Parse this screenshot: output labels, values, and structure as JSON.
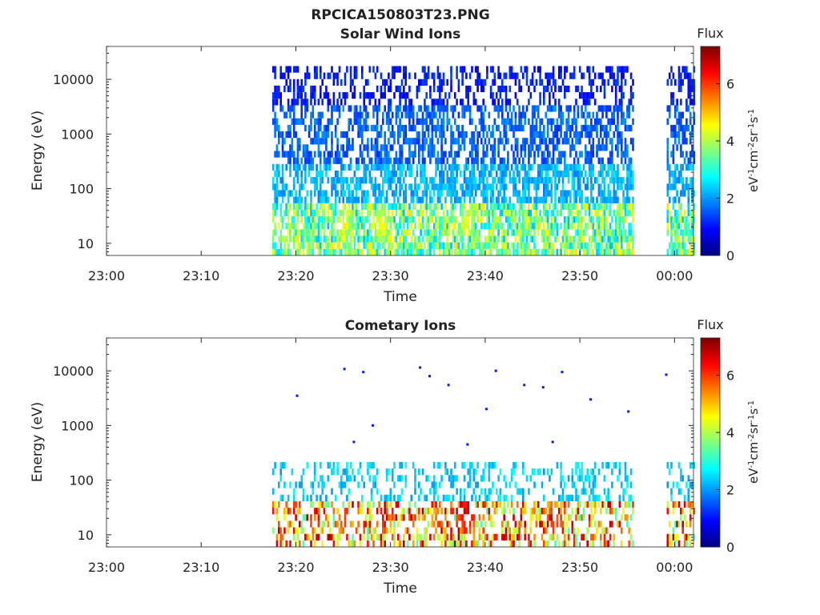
{
  "figure": {
    "suptitle": "RPCICA150803T23.PNG"
  },
  "colors": {
    "colormap": [
      "#00007f",
      "#0000ff",
      "#007fff",
      "#00ffff",
      "#7fff7f",
      "#ffff00",
      "#ff7f00",
      "#ff0000",
      "#7f0000"
    ]
  },
  "chart_data": [
    {
      "type": "heatmap",
      "title": "Solar Wind Ions",
      "xlabel": "Time",
      "ylabel": "Energy (eV)",
      "y_scale": "log",
      "ylim": [
        6,
        40000
      ],
      "yticks": [
        10,
        100,
        1000,
        10000
      ],
      "yticklabels": [
        "10",
        "100",
        "1000",
        "10000"
      ],
      "x_range": [
        "23:00",
        "00:02"
      ],
      "xticks": [
        "23:00",
        "23:10",
        "23:20",
        "23:30",
        "23:40",
        "23:50",
        "00:00"
      ],
      "colorbar": {
        "label": "Flux",
        "unit_label": "eV-1cm-2sr-1s-1",
        "range": [
          0,
          7.3
        ],
        "ticks": [
          "0",
          "2",
          "4",
          "6"
        ]
      },
      "data_intervals": [
        [
          "23:17:30",
          "23:55:40"
        ],
        [
          "23:59:10",
          "00:02:00"
        ]
      ],
      "bands": [
        {
          "energy_range": [
            6,
            50
          ],
          "flux_range": [
            2.2,
            4.8
          ]
        },
        {
          "energy_range": [
            50,
            300
          ],
          "flux_range": [
            1.8,
            2.6
          ]
        },
        {
          "energy_range": [
            300,
            3000
          ],
          "flux_range": [
            1.2,
            2.0
          ]
        },
        {
          "energy_range": [
            3000,
            20000
          ],
          "flux_range": [
            0.8,
            1.4
          ]
        }
      ],
      "hotspots": [
        {
          "time": "23:25",
          "energy": 22,
          "flux": 4.6
        },
        {
          "time": "23:29",
          "energy": 22,
          "flux": 4.8
        },
        {
          "time": "23:38",
          "energy": 25,
          "flux": 4.7
        }
      ]
    },
    {
      "type": "heatmap",
      "title": "Cometary Ions",
      "xlabel": "Time",
      "ylabel": "Energy (eV)",
      "y_scale": "log",
      "ylim": [
        6,
        40000
      ],
      "yticks": [
        10,
        100,
        1000,
        10000
      ],
      "yticklabels": [
        "10",
        "100",
        "1000",
        "10000"
      ],
      "x_range": [
        "23:00",
        "00:02"
      ],
      "xticks": [
        "23:00",
        "23:10",
        "23:20",
        "23:30",
        "23:40",
        "23:50",
        "00:00"
      ],
      "colorbar": {
        "label": "Flux",
        "unit_label": "eV-1cm-2sr-1s-1",
        "range": [
          0,
          7.3
        ],
        "ticks": [
          "0",
          "2",
          "4",
          "6"
        ]
      },
      "data_intervals": [
        [
          "23:17:30",
          "23:55:40"
        ],
        [
          "23:59:10",
          "00:02:00"
        ]
      ],
      "bands": [
        {
          "energy_range": [
            6,
            40
          ],
          "flux_range": [
            3.2,
            7.0
          ]
        },
        {
          "energy_range": [
            40,
            200
          ],
          "flux_range": [
            2.0,
            2.8
          ]
        }
      ],
      "hotspots": [
        {
          "time": "23:19",
          "energy": 15,
          "flux": 5.2
        },
        {
          "time": "23:22",
          "energy": 15,
          "flux": 4.6
        },
        {
          "time": "23:25",
          "energy": 18,
          "flux": 6.3
        },
        {
          "time": "23:29",
          "energy": 22,
          "flux": 6.6
        },
        {
          "time": "23:32",
          "energy": 15,
          "flux": 4.8
        },
        {
          "time": "23:35",
          "energy": 18,
          "flux": 6.2
        },
        {
          "time": "23:38",
          "energy": 22,
          "flux": 7.0
        },
        {
          "time": "23:41",
          "energy": 15,
          "flux": 4.6
        },
        {
          "time": "23:44",
          "energy": 18,
          "flux": 5.6
        },
        {
          "time": "23:47",
          "energy": 20,
          "flux": 6.4
        },
        {
          "time": "23:51",
          "energy": 15,
          "flux": 4.5
        },
        {
          "time": "23:54",
          "energy": 15,
          "flux": 4.2
        },
        {
          "time": "00:01",
          "energy": 15,
          "flux": 4.4
        }
      ],
      "scattered_points": [
        {
          "time": "23:20",
          "energy": 3500
        },
        {
          "time": "23:25",
          "energy": 10800
        },
        {
          "time": "23:27",
          "energy": 9500
        },
        {
          "time": "23:33",
          "energy": 11500
        },
        {
          "time": "23:34",
          "energy": 8000
        },
        {
          "time": "23:36",
          "energy": 5500
        },
        {
          "time": "23:41",
          "energy": 10000
        },
        {
          "time": "23:44",
          "energy": 5500
        },
        {
          "time": "23:46",
          "energy": 5000
        },
        {
          "time": "23:48",
          "energy": 9500
        },
        {
          "time": "23:51",
          "energy": 3000
        },
        {
          "time": "23:59",
          "energy": 8500
        },
        {
          "time": "23:28",
          "energy": 1000
        },
        {
          "time": "23:40",
          "energy": 2000
        },
        {
          "time": "23:55",
          "energy": 1800
        },
        {
          "time": "23:26",
          "energy": 500
        },
        {
          "time": "23:38",
          "energy": 450
        },
        {
          "time": "23:47",
          "energy": 500
        }
      ]
    }
  ]
}
